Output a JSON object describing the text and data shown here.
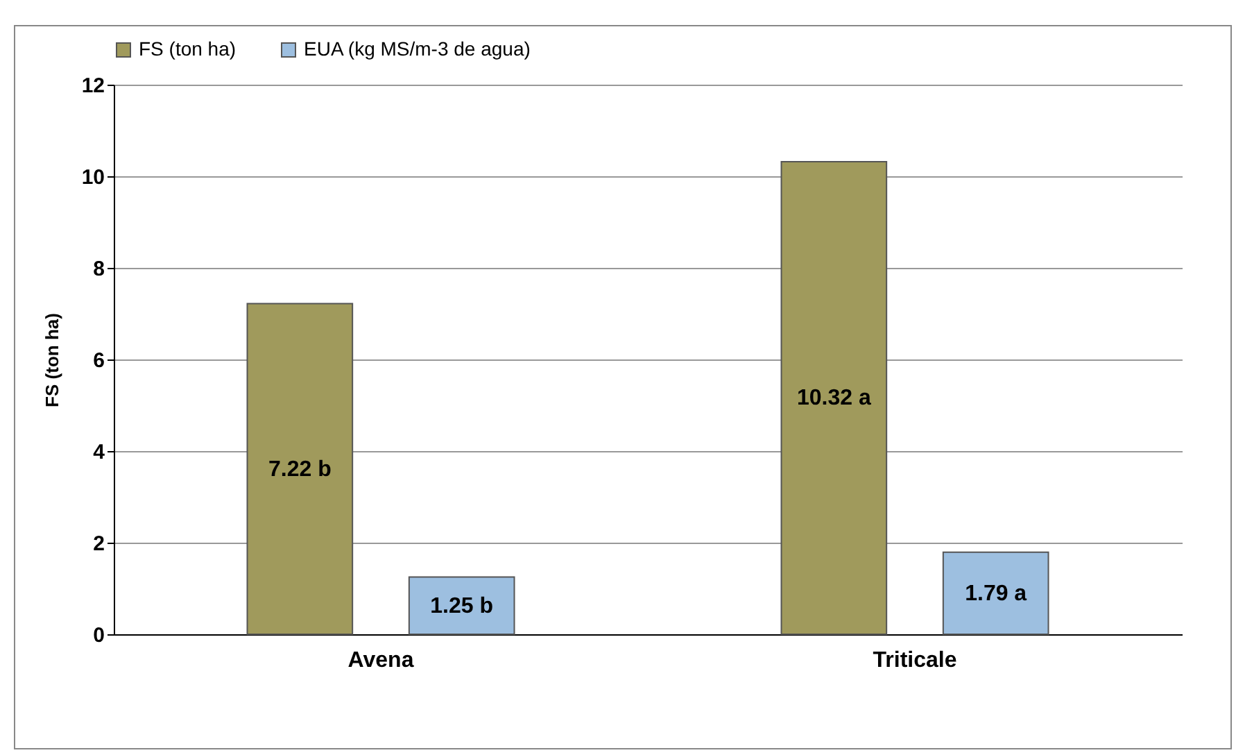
{
  "chart_data": {
    "type": "bar",
    "ylabel": "FS (ton ha)",
    "categories": [
      "Avena",
      "Triticale"
    ],
    "series": [
      {
        "name": "FS (ton ha)",
        "color": "#a09a5c",
        "values": [
          7.22,
          10.32
        ],
        "value_labels": [
          "7.22 b",
          "10.32 a"
        ]
      },
      {
        "name": "EUA (kg MS/m-3 de agua)",
        "color": "#9dbfe0",
        "values": [
          1.25,
          1.79
        ],
        "value_labels": [
          "1.25 b",
          "1.79 a"
        ]
      }
    ],
    "ylim": [
      0,
      12
    ],
    "yticks": [
      0,
      2,
      4,
      6,
      8,
      10,
      12
    ],
    "grid": "y",
    "legend": "top"
  }
}
